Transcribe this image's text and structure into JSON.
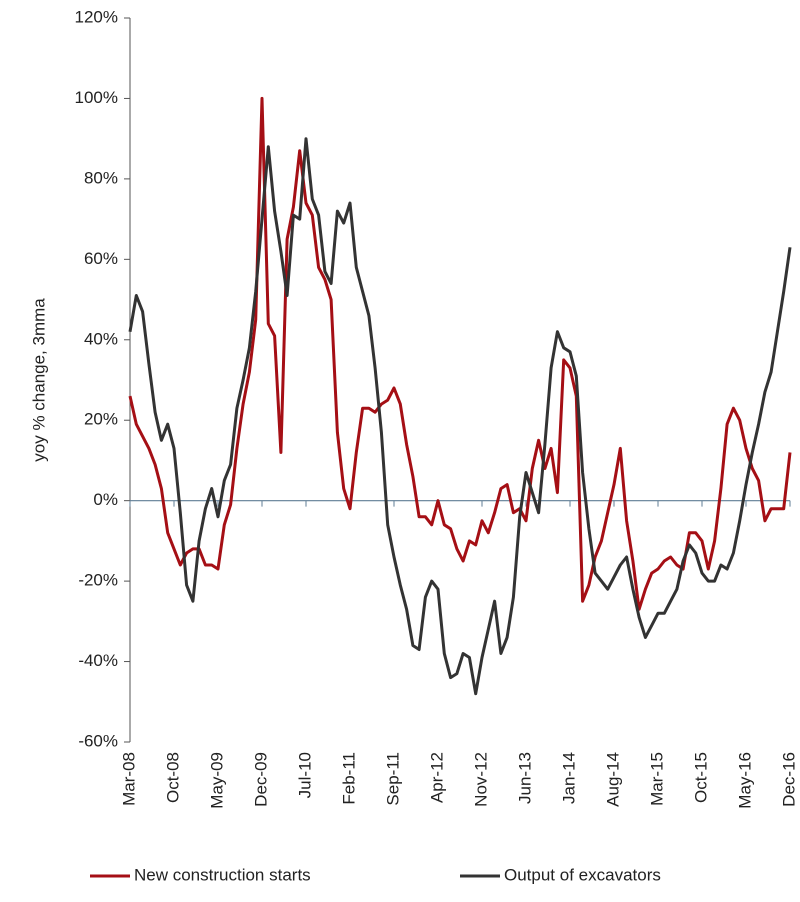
{
  "chart_data": {
    "type": "line",
    "y_label": "yoy % change, 3mma",
    "categories": [
      "Mar-08",
      null,
      null,
      null,
      null,
      null,
      null,
      "Oct-08",
      null,
      null,
      null,
      null,
      null,
      null,
      "May-09",
      null,
      null,
      null,
      null,
      null,
      null,
      "Dec-09",
      null,
      null,
      null,
      null,
      null,
      null,
      "Jul-10",
      null,
      null,
      null,
      null,
      null,
      null,
      "Feb-11",
      null,
      null,
      null,
      null,
      null,
      null,
      "Sep-11",
      null,
      null,
      null,
      null,
      null,
      null,
      "Apr-12",
      null,
      null,
      null,
      null,
      null,
      null,
      "Nov-12",
      null,
      null,
      null,
      null,
      null,
      null,
      "Jun-13",
      null,
      null,
      null,
      null,
      null,
      null,
      "Jan-14",
      null,
      null,
      null,
      null,
      null,
      null,
      "Aug-14",
      null,
      null,
      null,
      null,
      null,
      null,
      "Mar-15",
      null,
      null,
      null,
      null,
      null,
      null,
      "Oct-15",
      null,
      null,
      null,
      null,
      null,
      null,
      "May-16",
      null,
      null,
      null,
      null,
      null,
      null,
      "Dec-16"
    ],
    "series": [
      {
        "name": "New construction starts",
        "color": "#a50f15",
        "values": [
          26,
          19,
          16,
          13,
          9,
          3,
          -8,
          -12,
          -16,
          -13,
          -12,
          -12,
          -16,
          -16,
          -17,
          -6,
          -1,
          13,
          24,
          32,
          45,
          100,
          44,
          41,
          12,
          65,
          73,
          87,
          74,
          71,
          58,
          55,
          50,
          17,
          3,
          -2,
          12,
          23,
          23,
          22,
          24,
          25,
          28,
          24,
          14,
          6,
          -4,
          -4,
          -6,
          0,
          -6,
          -7,
          -12,
          -15,
          -10,
          -11,
          -5,
          -8,
          -3,
          3,
          4,
          -3,
          -2,
          -5,
          8,
          15,
          8,
          13,
          2,
          35,
          33,
          26,
          -25,
          -21,
          -14,
          -10,
          -3,
          4,
          13,
          -5,
          -15,
          -27,
          -22,
          -18,
          -17,
          -15,
          -14,
          -16,
          -17,
          -8,
          -8,
          -10,
          -17,
          -10,
          3,
          19,
          23,
          20,
          13,
          8,
          5,
          -5,
          -2,
          -2,
          -2,
          12
        ]
      },
      {
        "name": "Output of excavators",
        "color": "#333333",
        "values": [
          42,
          51,
          47,
          34,
          22,
          15,
          19,
          13,
          -3,
          -21,
          -25,
          -10,
          -2,
          3,
          -4,
          5,
          9,
          23,
          30,
          38,
          52,
          70,
          88,
          72,
          62,
          51,
          71,
          70,
          90,
          75,
          71,
          57,
          54,
          72,
          69,
          74,
          58,
          52,
          46,
          33,
          17,
          -6,
          -14,
          -21,
          -27,
          -36,
          -37,
          -24,
          -20,
          -22,
          -38,
          -44,
          -43,
          -38,
          -39,
          -48,
          -39,
          -32,
          -25,
          -38,
          -34,
          -24,
          -4,
          7,
          2,
          -3,
          14,
          33,
          42,
          38,
          37,
          31,
          7,
          -7,
          -18,
          -20,
          -22,
          -19,
          -16,
          -14,
          -22,
          -29,
          -34,
          -31,
          -28,
          -28,
          -25,
          -22,
          -15,
          -11,
          -13,
          -18,
          -20,
          -20,
          -16,
          -17,
          -13,
          -5,
          4,
          12,
          19,
          27,
          32,
          42,
          52,
          63
        ]
      }
    ],
    "ylim": [
      -60,
      120
    ],
    "yticks": [
      {
        "value": -60,
        "label": "-60%"
      },
      {
        "value": -40,
        "label": "-40%"
      },
      {
        "value": -20,
        "label": "-20%"
      },
      {
        "value": 0,
        "label": "0%"
      },
      {
        "value": 20,
        "label": "20%"
      },
      {
        "value": 40,
        "label": "40%"
      },
      {
        "value": 60,
        "label": "60%"
      },
      {
        "value": 80,
        "label": "80%"
      },
      {
        "value": 100,
        "label": "100%"
      },
      {
        "value": 120,
        "label": "120%"
      }
    ],
    "grid": false,
    "legend": "bottom"
  }
}
